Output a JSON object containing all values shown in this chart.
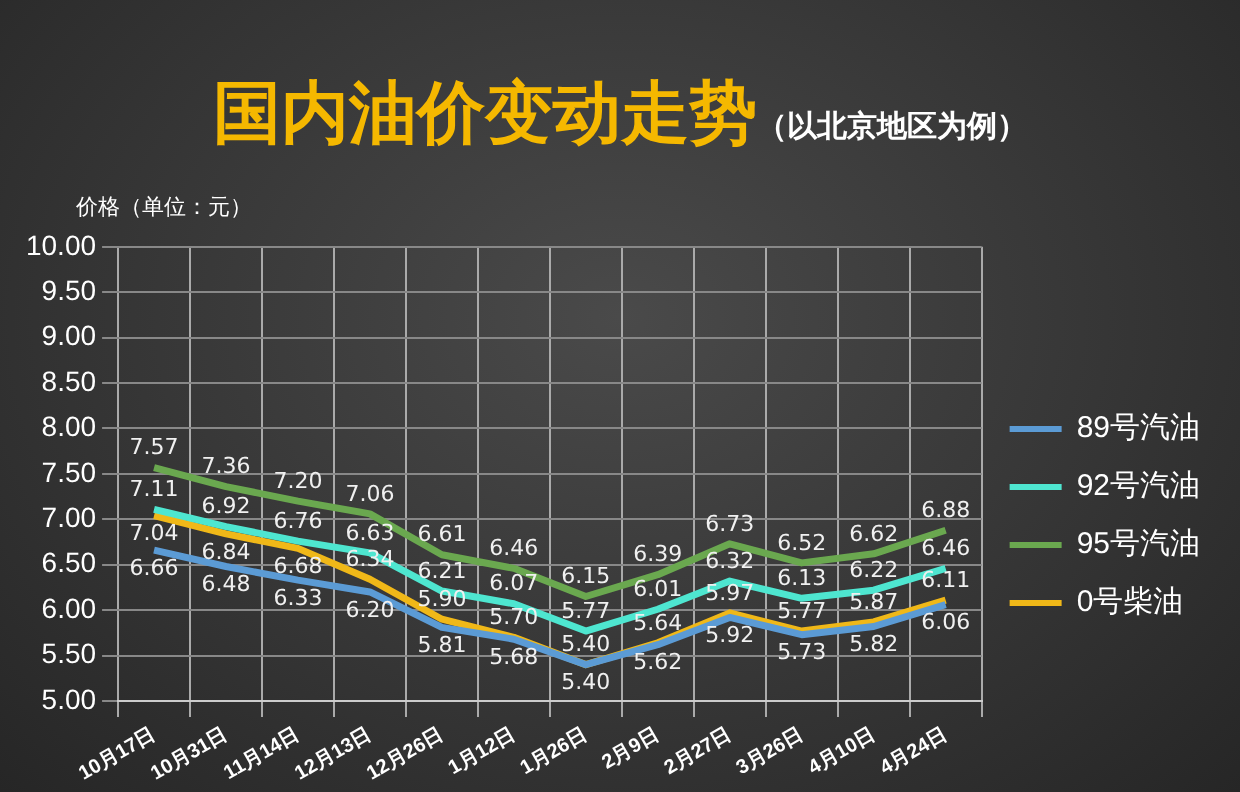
{
  "chart_data": {
    "type": "line",
    "title": "国内油价变动走势",
    "subtitle": "（以北京地区为例）",
    "ylabel": "价格（单位：元）",
    "categories": [
      "10月17日",
      "10月31日",
      "11月14日",
      "12月13日",
      "12月26日",
      "1月12日",
      "1月26日",
      "2月9日",
      "2月27日",
      "3月26日",
      "4月10日",
      "4月24日"
    ],
    "series": [
      {
        "name": "89号汽油",
        "color": "#5b9bd5",
        "values": [
          6.66,
          6.48,
          6.33,
          6.2,
          5.81,
          5.68,
          5.4,
          5.62,
          5.92,
          5.73,
          5.82,
          6.06
        ],
        "value_labels": [
          "6.66",
          "6.48",
          "6.33",
          "6.20",
          "5.81",
          "5.68",
          "5.40",
          "5.62",
          "5.92",
          "5.73",
          "5.82",
          "6.06"
        ]
      },
      {
        "name": "92号汽油",
        "color": "#4ee6d0",
        "values": [
          7.11,
          6.92,
          6.76,
          6.63,
          6.21,
          6.07,
          5.77,
          6.01,
          6.32,
          6.13,
          6.22,
          6.46
        ],
        "value_labels": [
          "7.11",
          "6.92",
          "6.76",
          "6.63",
          "6.21",
          "6.07",
          "5.77",
          "6.01",
          "6.32",
          "6.13",
          "6.22",
          "6.46"
        ]
      },
      {
        "name": "95号汽油",
        "color": "#6aa84f",
        "values": [
          7.57,
          7.36,
          7.2,
          7.06,
          6.61,
          6.46,
          6.15,
          6.39,
          6.73,
          6.52,
          6.62,
          6.88
        ],
        "value_labels": [
          "7.57",
          "7.36",
          "7.20",
          "7.06",
          "6.61",
          "6.46",
          "6.15",
          "6.39",
          "6.73",
          "6.52",
          "6.62",
          "6.88"
        ]
      },
      {
        "name": "0号柴油",
        "color": "#f0b818",
        "values": [
          7.04,
          6.84,
          6.68,
          6.34,
          5.9,
          5.7,
          5.4,
          5.64,
          5.97,
          5.77,
          5.87,
          6.11
        ],
        "value_labels": [
          "7.04",
          "6.84",
          "6.68",
          "6.34",
          "5.90",
          "5.70",
          "5.40",
          "5.64",
          "5.97",
          "5.77",
          "5.87",
          "6.11"
        ]
      }
    ],
    "ylim": [
      5,
      10
    ],
    "yticks": [
      {
        "value": 5,
        "label": "5.00"
      },
      {
        "value": 5.5,
        "label": "5.50"
      },
      {
        "value": 6,
        "label": "6.00"
      },
      {
        "value": 6.5,
        "label": "6.50"
      },
      {
        "value": 7,
        "label": "7.00"
      },
      {
        "value": 7.5,
        "label": "7.50"
      },
      {
        "value": 8,
        "label": "8.00"
      },
      {
        "value": 8.5,
        "label": "8.50"
      },
      {
        "value": 9,
        "label": "9.00"
      },
      {
        "value": 9.5,
        "label": "9.50"
      },
      {
        "value": 10,
        "label": "10.00"
      }
    ],
    "grid": true,
    "legend": "right",
    "marker": "none",
    "line_style": "solid"
  }
}
